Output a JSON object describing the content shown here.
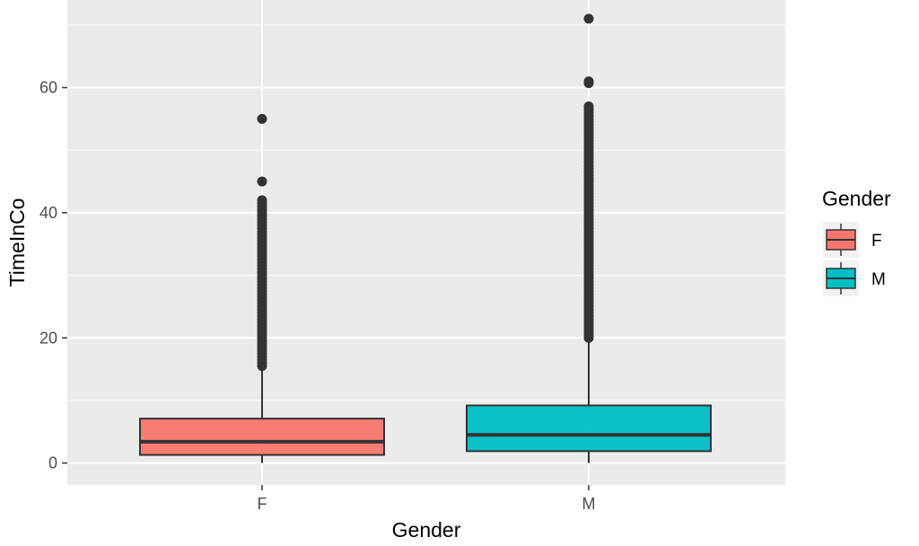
{
  "chart_data": {
    "type": "boxplot",
    "xlabel": "Gender",
    "ylabel": "TimeInCo",
    "categories": [
      "F",
      "M"
    ],
    "ylim": [
      -3.5,
      74
    ],
    "yticks": [
      0,
      20,
      40,
      60
    ],
    "grid": true,
    "legend": {
      "title": "Gender",
      "position": "right",
      "entries": [
        {
          "label": "F",
          "color": "#F8766D"
        },
        {
          "label": "M",
          "color": "#00BFC4"
        }
      ]
    },
    "boxes": [
      {
        "category": "F",
        "color": "#F8766D",
        "whisker_low": 0,
        "q1": 1.3,
        "median": 3.4,
        "q3": 7.1,
        "whisker_high": 15.2,
        "outliers": [
          15.5,
          16,
          16.5,
          17,
          17.5,
          18,
          18.5,
          19,
          19.5,
          20,
          20.5,
          21,
          21.5,
          22,
          22.5,
          23,
          23.5,
          24,
          24.5,
          25,
          25.5,
          26,
          26.5,
          27,
          27.5,
          28,
          28.5,
          29,
          29.5,
          30,
          30.5,
          31,
          31.5,
          32,
          32.5,
          33,
          33.5,
          34,
          34.5,
          35,
          35.5,
          36,
          36.5,
          37,
          37.5,
          38,
          38.5,
          39,
          39.5,
          40,
          40.5,
          41,
          41.5,
          42,
          45,
          55
        ]
      },
      {
        "category": "M",
        "color": "#00BFC4",
        "whisker_low": 0,
        "q1": 1.9,
        "median": 4.5,
        "q3": 9.2,
        "whisker_high": 19.8,
        "outliers": [
          20,
          20.5,
          21,
          21.5,
          22,
          22.5,
          23,
          23.5,
          24,
          24.5,
          25,
          25.5,
          26,
          26.5,
          27,
          27.5,
          28,
          28.5,
          29,
          29.5,
          30,
          30.5,
          31,
          31.5,
          32,
          32.5,
          33,
          33.5,
          34,
          34.5,
          35,
          35.5,
          36,
          36.5,
          37,
          37.5,
          38,
          38.5,
          39,
          39.5,
          40,
          40.5,
          41,
          41.5,
          42,
          42.5,
          43,
          43.5,
          44,
          44.5,
          45,
          45.5,
          46,
          46.5,
          47,
          47.5,
          48,
          48.5,
          49,
          49.5,
          50,
          50.5,
          51,
          51.5,
          52,
          52.5,
          53,
          53.5,
          54,
          54.5,
          55,
          55.5,
          56,
          56.5,
          57,
          60.7,
          61,
          71
        ]
      }
    ]
  }
}
